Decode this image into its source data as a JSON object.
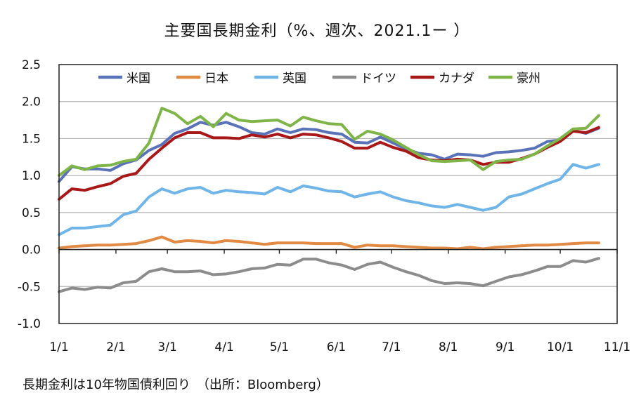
{
  "chart_data": {
    "type": "line",
    "title": "主要国長期金利（%、週次、2021.1ー ）",
    "footnote": "長期金利は10年物国債利回り　（出所：Bloomberg）",
    "xlabel": "",
    "ylabel": "",
    "x_ticks": [
      "1/1",
      "2/1",
      "3/1",
      "4/1",
      "5/1",
      "6/1",
      "7/1",
      "8/1",
      "9/1",
      "10/1",
      "11/1"
    ],
    "y_ticks": [
      "2.5",
      "2.0",
      "1.5",
      "1.0",
      "0.5",
      "0.0",
      "-0.5",
      "-1.0"
    ],
    "ylim": [
      -1.0,
      2.5
    ],
    "xlim": [
      "2021-01-01",
      "2021-11-01"
    ],
    "grid": "horizontal",
    "legend_position": "top",
    "x": [
      "2021-01-01",
      "2021-01-08",
      "2021-01-15",
      "2021-01-22",
      "2021-01-29",
      "2021-02-05",
      "2021-02-12",
      "2021-02-19",
      "2021-02-26",
      "2021-03-05",
      "2021-03-12",
      "2021-03-19",
      "2021-03-26",
      "2021-04-02",
      "2021-04-09",
      "2021-04-16",
      "2021-04-23",
      "2021-04-30",
      "2021-05-07",
      "2021-05-14",
      "2021-05-21",
      "2021-05-28",
      "2021-06-04",
      "2021-06-11",
      "2021-06-18",
      "2021-06-25",
      "2021-07-02",
      "2021-07-09",
      "2021-07-16",
      "2021-07-23",
      "2021-07-30",
      "2021-08-06",
      "2021-08-13",
      "2021-08-20",
      "2021-08-27",
      "2021-09-03",
      "2021-09-10",
      "2021-09-17",
      "2021-09-24",
      "2021-10-01",
      "2021-10-08",
      "2021-10-15",
      "2021-10-22"
    ],
    "series": [
      {
        "name": "米国",
        "color": "#5a72b8",
        "values": [
          0.92,
          1.12,
          1.09,
          1.09,
          1.07,
          1.16,
          1.21,
          1.34,
          1.42,
          1.57,
          1.63,
          1.72,
          1.68,
          1.72,
          1.66,
          1.58,
          1.56,
          1.63,
          1.58,
          1.63,
          1.62,
          1.58,
          1.56,
          1.45,
          1.44,
          1.52,
          1.44,
          1.36,
          1.3,
          1.28,
          1.22,
          1.29,
          1.28,
          1.26,
          1.31,
          1.32,
          1.34,
          1.37,
          1.46,
          1.48,
          1.61,
          1.57,
          1.64
        ]
      },
      {
        "name": "日本",
        "color": "#e08a44",
        "values": [
          0.02,
          0.04,
          0.05,
          0.06,
          0.06,
          0.07,
          0.08,
          0.12,
          0.17,
          0.1,
          0.12,
          0.11,
          0.09,
          0.12,
          0.11,
          0.09,
          0.07,
          0.09,
          0.09,
          0.09,
          0.08,
          0.08,
          0.08,
          0.03,
          0.06,
          0.05,
          0.05,
          0.04,
          0.03,
          0.02,
          0.02,
          0.01,
          0.03,
          0.01,
          0.03,
          0.04,
          0.05,
          0.06,
          0.06,
          0.07,
          0.08,
          0.09,
          0.09
        ]
      },
      {
        "name": "英国",
        "color": "#6fb5e8",
        "values": [
          0.2,
          0.29,
          0.29,
          0.31,
          0.33,
          0.47,
          0.52,
          0.71,
          0.82,
          0.76,
          0.82,
          0.84,
          0.76,
          0.8,
          0.78,
          0.77,
          0.75,
          0.84,
          0.78,
          0.86,
          0.83,
          0.79,
          0.78,
          0.71,
          0.75,
          0.78,
          0.71,
          0.66,
          0.63,
          0.59,
          0.57,
          0.61,
          0.57,
          0.53,
          0.57,
          0.71,
          0.75,
          0.82,
          0.89,
          0.95,
          1.15,
          1.1,
          1.15
        ]
      },
      {
        "name": "ドイツ",
        "color": "#8c8c8c",
        "values": [
          -0.57,
          -0.52,
          -0.54,
          -0.51,
          -0.52,
          -0.45,
          -0.43,
          -0.3,
          -0.26,
          -0.3,
          -0.3,
          -0.29,
          -0.34,
          -0.33,
          -0.3,
          -0.26,
          -0.25,
          -0.2,
          -0.21,
          -0.13,
          -0.13,
          -0.18,
          -0.21,
          -0.27,
          -0.2,
          -0.17,
          -0.24,
          -0.3,
          -0.35,
          -0.42,
          -0.46,
          -0.45,
          -0.46,
          -0.49,
          -0.43,
          -0.37,
          -0.34,
          -0.29,
          -0.23,
          -0.23,
          -0.15,
          -0.17,
          -0.12
        ]
      },
      {
        "name": "カナダ",
        "color": "#a81818",
        "values": [
          0.68,
          0.82,
          0.8,
          0.85,
          0.89,
          0.99,
          1.03,
          1.22,
          1.37,
          1.51,
          1.58,
          1.58,
          1.51,
          1.51,
          1.5,
          1.55,
          1.52,
          1.56,
          1.51,
          1.56,
          1.55,
          1.51,
          1.46,
          1.37,
          1.37,
          1.45,
          1.38,
          1.33,
          1.24,
          1.21,
          1.2,
          1.22,
          1.21,
          1.15,
          1.18,
          1.18,
          1.23,
          1.29,
          1.38,
          1.46,
          1.6,
          1.58,
          1.65
        ]
      },
      {
        "name": "豪州",
        "color": "#7fb548",
        "values": [
          1.0,
          1.13,
          1.08,
          1.13,
          1.14,
          1.19,
          1.22,
          1.44,
          1.91,
          1.84,
          1.7,
          1.8,
          1.66,
          1.84,
          1.75,
          1.73,
          1.74,
          1.75,
          1.67,
          1.79,
          1.74,
          1.7,
          1.69,
          1.49,
          1.6,
          1.56,
          1.48,
          1.38,
          1.28,
          1.2,
          1.19,
          1.2,
          1.21,
          1.08,
          1.19,
          1.21,
          1.22,
          1.29,
          1.4,
          1.5,
          1.63,
          1.64,
          1.81
        ]
      }
    ]
  }
}
